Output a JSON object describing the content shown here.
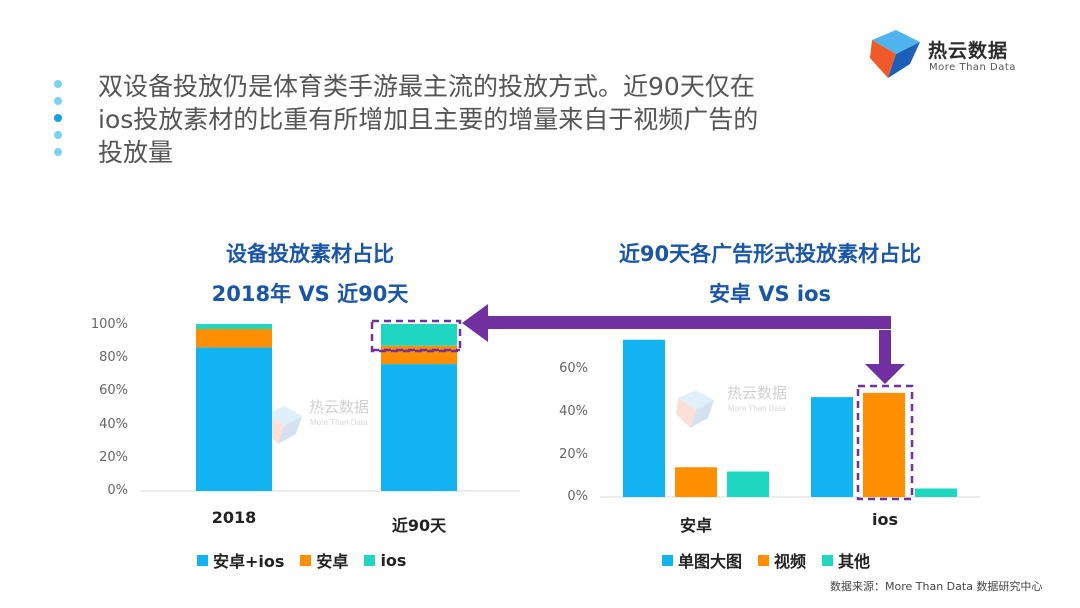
{
  "logo": {
    "name": "热云数据",
    "tagline": "More Than Data"
  },
  "headline": {
    "line1": "双设备投放仍是体育类手游最主流的投放方式。近90天仅在",
    "line2": "ios投放素材的比重有所增加且主要的增量来自于视频广告的",
    "line3": "投放量"
  },
  "colors": {
    "blue": "#11b3f0",
    "orange": "#ff8f00",
    "teal": "#1fd6c0",
    "purple": "#7030a0",
    "title": "#1a56a8"
  },
  "left_chart": {
    "title1": "设备投放素材占比",
    "title2": "2018年 VS 近90天"
  },
  "right_chart": {
    "title1": "近90天各广告形式投放素材占比",
    "title2": "安卓 VS ios"
  },
  "watermark": {
    "name": "热云数据",
    "tagline": "More Than Data"
  },
  "source": "数据来源：More Than Data 数据研究中心",
  "chart_data": [
    {
      "type": "bar",
      "stacked": true,
      "title": "设备投放素材占比 2018年 VS 近90天",
      "categories": [
        "2018",
        "近90天"
      ],
      "series": [
        {
          "name": "安卓+ios",
          "values": [
            86,
            76
          ]
        },
        {
          "name": "安卓",
          "values": [
            11,
            11
          ]
        },
        {
          "name": "ios",
          "values": [
            3,
            13
          ]
        }
      ],
      "ylim": [
        0,
        100
      ],
      "yticks": [
        "0%",
        "20%",
        "40%",
        "60%",
        "80%",
        "100%"
      ],
      "legend": "bottom",
      "grid": false
    },
    {
      "type": "bar",
      "title": "近90天各广告形式投放素材占比 安卓 VS ios",
      "categories": [
        "安卓",
        "ios"
      ],
      "series": [
        {
          "name": "单图大图",
          "values": [
            74,
            47
          ]
        },
        {
          "name": "视频",
          "values": [
            14,
            49
          ]
        },
        {
          "name": "其他",
          "values": [
            12,
            4
          ]
        }
      ],
      "ylim": [
        0,
        75
      ],
      "yticks": [
        "0%",
        "20%",
        "40%",
        "60%"
      ],
      "legend": "bottom",
      "grid": false
    }
  ]
}
